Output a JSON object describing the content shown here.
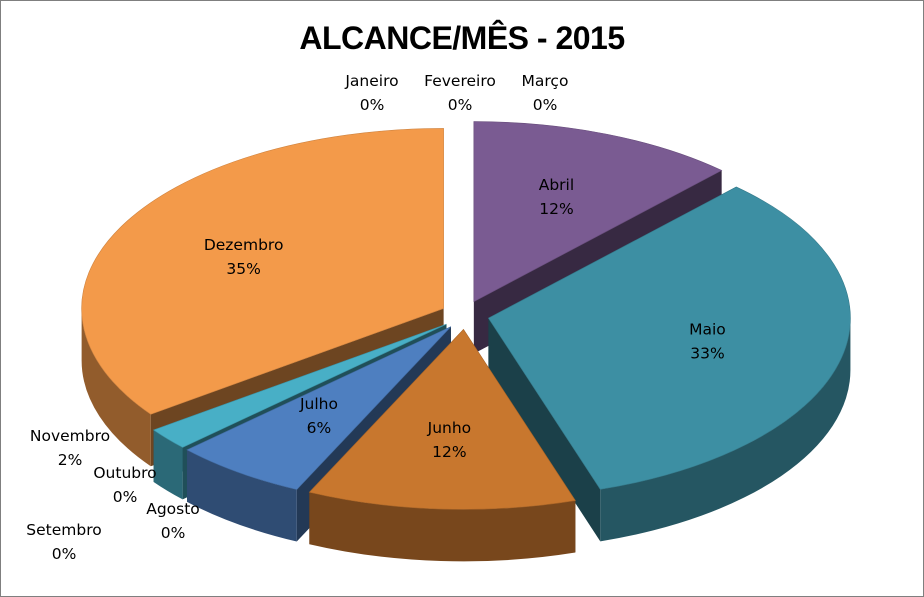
{
  "chart_data": {
    "type": "pie",
    "title": "ALCANCE/MÊS - 2015",
    "legend": "none",
    "slices": [
      {
        "name": "Janeiro",
        "value": 0,
        "label": "0%",
        "color": "#4f81bd"
      },
      {
        "name": "Fevereiro",
        "value": 0,
        "label": "0%",
        "color": "#c0504d"
      },
      {
        "name": "Março",
        "value": 0,
        "label": "0%",
        "color": "#9bbb59"
      },
      {
        "name": "Abril",
        "value": 12,
        "label": "12%",
        "color": "#7a5b92"
      },
      {
        "name": "Maio",
        "value": 33,
        "label": "33%",
        "color": "#3d8fa3"
      },
      {
        "name": "Junho",
        "value": 12,
        "label": "12%",
        "color": "#c8772e"
      },
      {
        "name": "Julho",
        "value": 6,
        "label": "6%",
        "color": "#4e7fc0"
      },
      {
        "name": "Agosto",
        "value": 0,
        "label": "0%",
        "color": "#9cb85a"
      },
      {
        "name": "Setembro",
        "value": 0,
        "label": "0%",
        "color": "#7a5b92"
      },
      {
        "name": "Outubro",
        "value": 0,
        "label": "0%",
        "color": "#a33b38"
      },
      {
        "name": "Novembro",
        "value": 2,
        "label": "2%",
        "color": "#48afc6"
      },
      {
        "name": "Dezembro",
        "value": 35,
        "label": "35%",
        "color": "#f39a4a"
      }
    ]
  }
}
